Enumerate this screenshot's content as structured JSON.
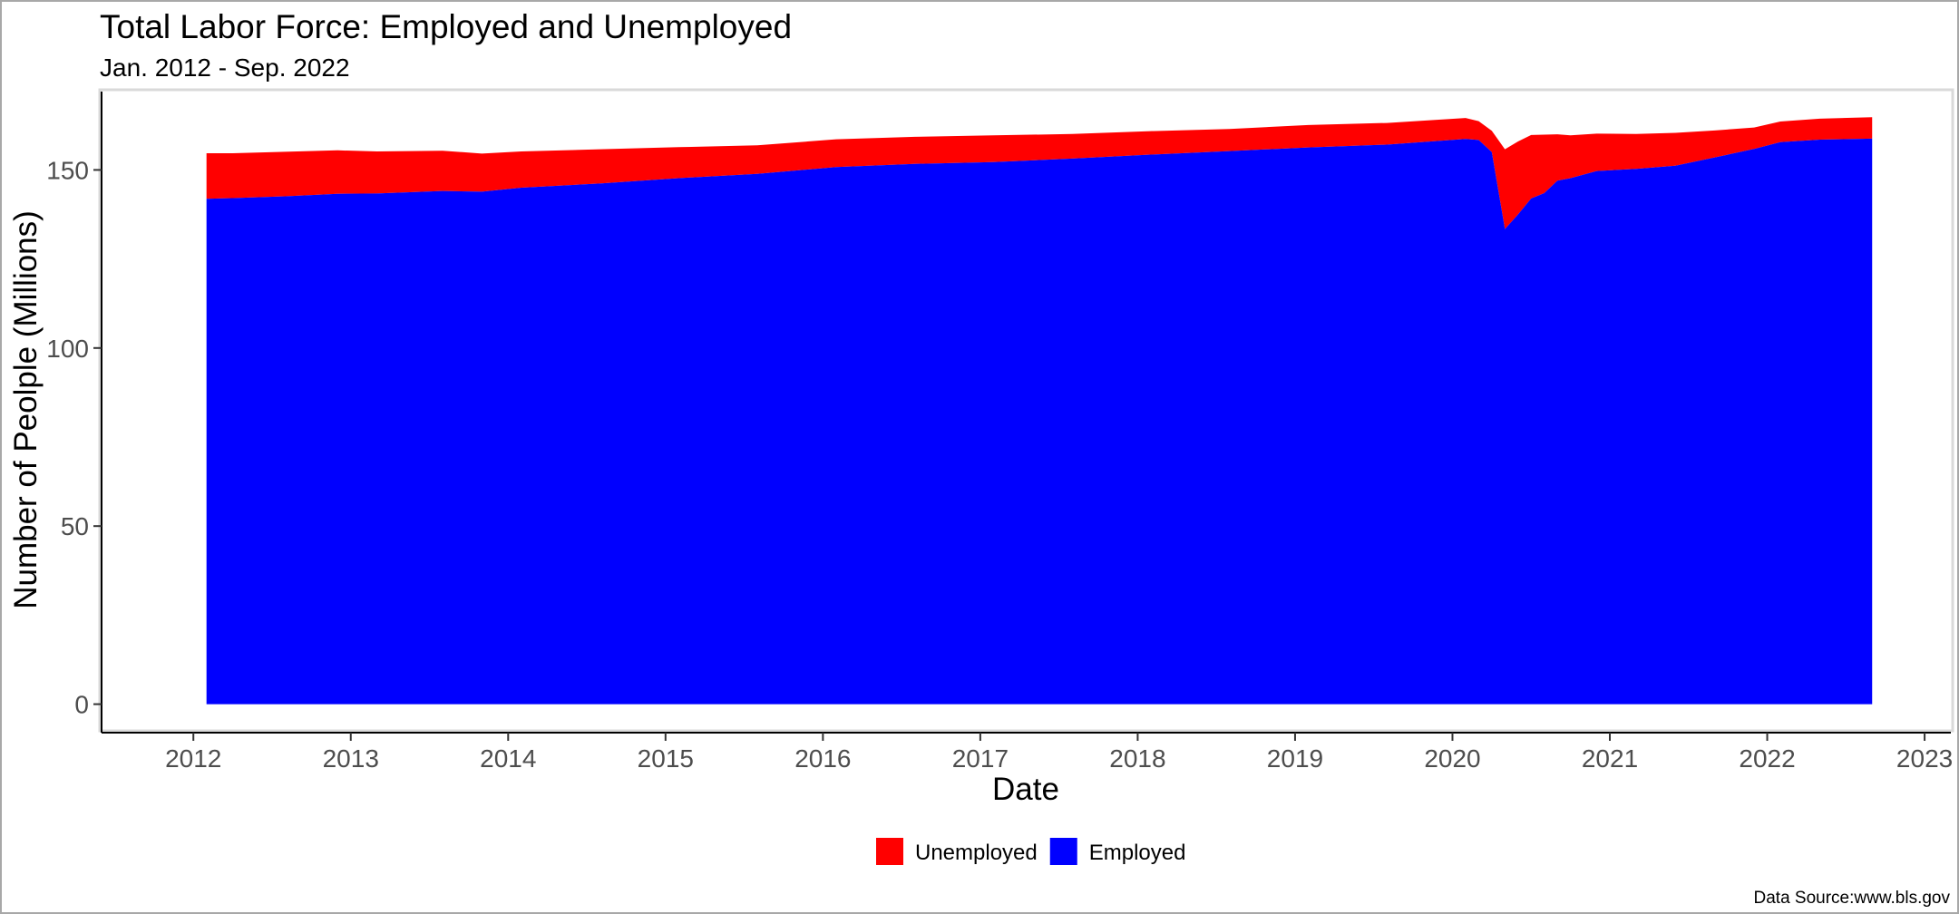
{
  "chart_data": {
    "type": "area",
    "stacked": true,
    "title": "Total Labor Force: Employed and Unemployed",
    "subtitle": "Jan. 2012 - Sep. 2022",
    "xlabel": "Date",
    "ylabel": "Number of Peolple (Millions)",
    "caption": "Data Source:www.bls.gov",
    "xlim": [
      "2011-06-01",
      "2023-03-01"
    ],
    "ylim": [
      -8,
      172
    ],
    "x_ticks": [
      "2012",
      "2013",
      "2014",
      "2015",
      "2016",
      "2017",
      "2018",
      "2019",
      "2020",
      "2021",
      "2022",
      "2023"
    ],
    "y_ticks": [
      0,
      50,
      100,
      150
    ],
    "legend": {
      "position": "bottom",
      "entries": [
        {
          "name": "Unemployed",
          "color": "#ff0000"
        },
        {
          "name": "Employed",
          "color": "#0000ff"
        }
      ]
    },
    "colors": {
      "Unemployed": "#ff0000",
      "Employed": "#0000ff"
    },
    "x": [
      "2012-02",
      "2012-04",
      "2012-08",
      "2012-12",
      "2013-03",
      "2013-08",
      "2013-11",
      "2014-02",
      "2014-08",
      "2015-02",
      "2015-08",
      "2016-02",
      "2016-08",
      "2017-02",
      "2017-08",
      "2018-02",
      "2018-08",
      "2019-02",
      "2019-08",
      "2020-02",
      "2020-03",
      "2020-04",
      "2020-05",
      "2020-06",
      "2020-07",
      "2020-08",
      "2020-09",
      "2020-10",
      "2020-12",
      "2021-03",
      "2021-06",
      "2021-09",
      "2021-12",
      "2022-02",
      "2022-05",
      "2022-09"
    ],
    "series": [
      {
        "name": "Employed",
        "values": [
          141.9,
          142.1,
          142.6,
          143.3,
          143.4,
          144.1,
          143.9,
          145.0,
          146.2,
          147.7,
          148.9,
          150.8,
          151.7,
          152.2,
          153.2,
          154.3,
          155.3,
          156.3,
          157.1,
          158.7,
          158.4,
          155.0,
          133.4,
          137.5,
          142.0,
          143.5,
          147.0,
          147.7,
          149.7,
          150.3,
          151.2,
          153.5,
          155.9,
          157.8,
          158.5,
          158.8
        ]
      },
      {
        "name": "Unemployed",
        "values": [
          12.8,
          12.6,
          12.5,
          12.2,
          11.8,
          11.3,
          10.7,
          10.2,
          9.6,
          8.7,
          8.0,
          7.8,
          7.6,
          7.5,
          6.9,
          6.6,
          6.2,
          6.3,
          6.1,
          5.9,
          5.3,
          6.0,
          22.4,
          20.5,
          17.8,
          16.4,
          13.0,
          12.0,
          10.5,
          9.8,
          9.2,
          7.6,
          6.0,
          5.8,
          5.9,
          6.0
        ]
      }
    ]
  }
}
